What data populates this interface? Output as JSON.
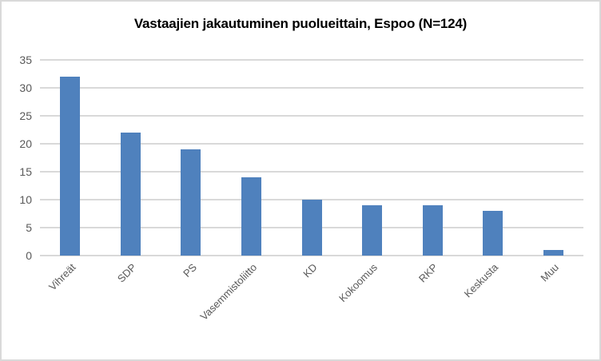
{
  "chart_data": {
    "type": "bar",
    "title": "Vastaajien jakautuminen puolueittain, Espoo (N=124)",
    "categories": [
      "Vihreät",
      "SDP",
      "PS",
      "Vasemmistoliitto",
      "KD",
      "Kokoomus",
      "RKP",
      "Keskusta",
      "Muu"
    ],
    "values": [
      32,
      22,
      19,
      14,
      10,
      9,
      9,
      8,
      1
    ],
    "xlabel": "",
    "ylabel": "",
    "ylim": [
      0,
      35
    ],
    "yticks": [
      0,
      5,
      10,
      15,
      20,
      25,
      30,
      35
    ],
    "grid": true,
    "legend": false,
    "x_label_rotation_deg": 45,
    "colors": {
      "bar": "#4f81bd",
      "gridline": "#d9d9d9",
      "axis_labels": "#595959",
      "title": "#000000",
      "background": "#ffffff",
      "frame_border": "#d9d9d9"
    }
  }
}
